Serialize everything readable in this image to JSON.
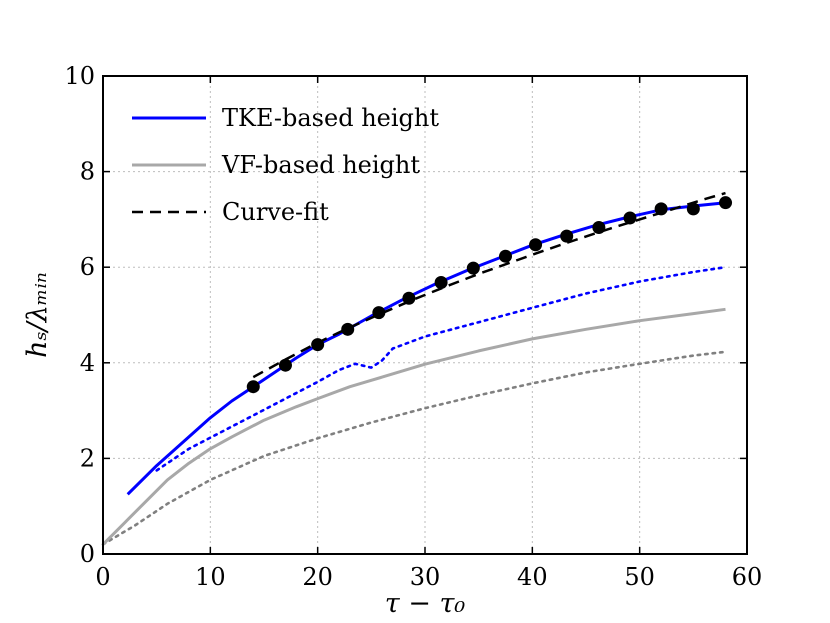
{
  "chart_data": {
    "type": "line",
    "title": "",
    "xlabel": "τ − τ₀",
    "ylabel": "hₛ/λₘᵢₙ",
    "xlim": [
      0,
      60
    ],
    "ylim": [
      0,
      10
    ],
    "xticks": [
      0,
      10,
      20,
      30,
      40,
      50,
      60
    ],
    "yticks": [
      0,
      2,
      4,
      6,
      8,
      10
    ],
    "xtick_labels": [
      "0",
      "10",
      "20",
      "30",
      "40",
      "50",
      "60"
    ],
    "ytick_labels": [
      "0",
      "2",
      "4",
      "6",
      "8",
      "10"
    ],
    "grid": true,
    "legend_position": "top-left",
    "series": [
      {
        "name": "TKE-based height",
        "style": "solid",
        "color": "#0000ff",
        "in_legend": true,
        "x": [
          2.3,
          5,
          8,
          10,
          12,
          14,
          16,
          18,
          20,
          22,
          25,
          28,
          31,
          34,
          37,
          40,
          43,
          46,
          49,
          52,
          55,
          58
        ],
        "y": [
          1.25,
          1.85,
          2.45,
          2.85,
          3.2,
          3.5,
          3.8,
          4.1,
          4.38,
          4.6,
          4.98,
          5.33,
          5.65,
          5.94,
          6.2,
          6.46,
          6.68,
          6.88,
          7.05,
          7.2,
          7.28,
          7.35
        ]
      },
      {
        "name": "VF-based height",
        "style": "solid",
        "color": "#a8a8a8",
        "in_legend": true,
        "x": [
          0,
          2,
          4,
          6,
          8,
          10,
          12,
          15,
          18,
          20,
          23,
          26,
          30,
          35,
          40,
          45,
          50,
          55,
          58
        ],
        "y": [
          0.2,
          0.65,
          1.1,
          1.55,
          1.9,
          2.2,
          2.45,
          2.8,
          3.08,
          3.25,
          3.5,
          3.7,
          3.97,
          4.25,
          4.5,
          4.7,
          4.88,
          5.03,
          5.12
        ]
      },
      {
        "name": "Curve-fit",
        "style": "dashed",
        "color": "#000000",
        "in_legend": true,
        "x": [
          14,
          17,
          20,
          23,
          26,
          29,
          32,
          35,
          38,
          41,
          44,
          47,
          50,
          53,
          56,
          58
        ],
        "y": [
          3.7,
          4.07,
          4.42,
          4.74,
          5.04,
          5.33,
          5.6,
          5.86,
          6.1,
          6.34,
          6.57,
          6.79,
          7.0,
          7.21,
          7.42,
          7.55
        ]
      },
      {
        "name": "TKE data points",
        "style": "markers",
        "color": "#000000",
        "in_legend": false,
        "x": [
          14,
          17,
          20,
          22.8,
          25.7,
          28.5,
          31.5,
          34.5,
          37.5,
          40.3,
          43.2,
          46.2,
          49.1,
          52,
          55,
          58
        ],
        "y": [
          3.5,
          3.95,
          4.38,
          4.7,
          5.05,
          5.35,
          5.68,
          5.98,
          6.23,
          6.47,
          6.65,
          6.83,
          7.03,
          7.22,
          7.22,
          7.35
        ]
      },
      {
        "name": "TKE-based dotted",
        "style": "dotted",
        "color": "#0000ff",
        "in_legend": false,
        "x": [
          5,
          8,
          11,
          14,
          17,
          20,
          22,
          23.5,
          25,
          26,
          27,
          30,
          35,
          40,
          45,
          50,
          55,
          58
        ],
        "y": [
          1.75,
          2.2,
          2.55,
          2.9,
          3.25,
          3.6,
          3.85,
          3.98,
          3.9,
          4.05,
          4.3,
          4.55,
          4.85,
          5.15,
          5.45,
          5.7,
          5.9,
          6.0
        ]
      },
      {
        "name": "VF-based dotted",
        "style": "dotted",
        "color": "#808080",
        "in_legend": false,
        "x": [
          0,
          3,
          6,
          10,
          15,
          20,
          25,
          30,
          35,
          40,
          45,
          50,
          55,
          58
        ],
        "y": [
          0.2,
          0.6,
          1.05,
          1.55,
          2.05,
          2.42,
          2.75,
          3.05,
          3.32,
          3.57,
          3.8,
          3.98,
          4.15,
          4.23
        ]
      }
    ]
  }
}
